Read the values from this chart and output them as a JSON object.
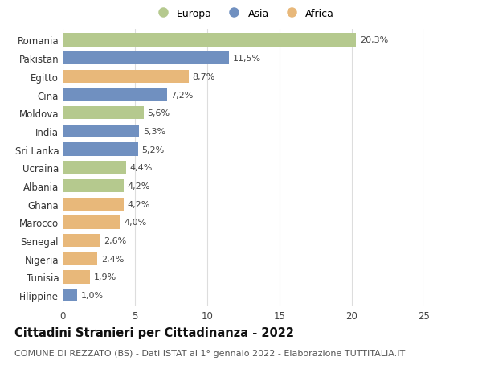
{
  "countries": [
    "Romania",
    "Pakistan",
    "Egitto",
    "Cina",
    "Moldova",
    "India",
    "Sri Lanka",
    "Ucraina",
    "Albania",
    "Ghana",
    "Marocco",
    "Senegal",
    "Nigeria",
    "Tunisia",
    "Filippine"
  ],
  "values": [
    20.3,
    11.5,
    8.7,
    7.2,
    5.6,
    5.3,
    5.2,
    4.4,
    4.2,
    4.2,
    4.0,
    2.6,
    2.4,
    1.9,
    1.0
  ],
  "labels": [
    "20,3%",
    "11,5%",
    "8,7%",
    "7,2%",
    "5,6%",
    "5,3%",
    "5,2%",
    "4,4%",
    "4,2%",
    "4,2%",
    "4,0%",
    "2,6%",
    "2,4%",
    "1,9%",
    "1,0%"
  ],
  "continents": [
    "Europa",
    "Asia",
    "Africa",
    "Asia",
    "Europa",
    "Asia",
    "Asia",
    "Europa",
    "Europa",
    "Africa",
    "Africa",
    "Africa",
    "Africa",
    "Africa",
    "Asia"
  ],
  "colors": {
    "Europa": "#b5c98e",
    "Asia": "#7090c0",
    "Africa": "#e8b87a"
  },
  "legend_order": [
    "Europa",
    "Asia",
    "Africa"
  ],
  "title": "Cittadini Stranieri per Cittadinanza - 2022",
  "subtitle": "COMUNE DI REZZATO (BS) - Dati ISTAT al 1° gennaio 2022 - Elaborazione TUTTITALIA.IT",
  "xlim": [
    0,
    25
  ],
  "xticks": [
    0,
    5,
    10,
    15,
    20,
    25
  ],
  "bg_color": "#ffffff",
  "grid_color": "#dddddd",
  "title_fontsize": 10.5,
  "subtitle_fontsize": 8,
  "bar_label_fontsize": 8,
  "ytick_fontsize": 8.5,
  "xtick_fontsize": 8.5,
  "legend_fontsize": 9,
  "bar_height": 0.72
}
